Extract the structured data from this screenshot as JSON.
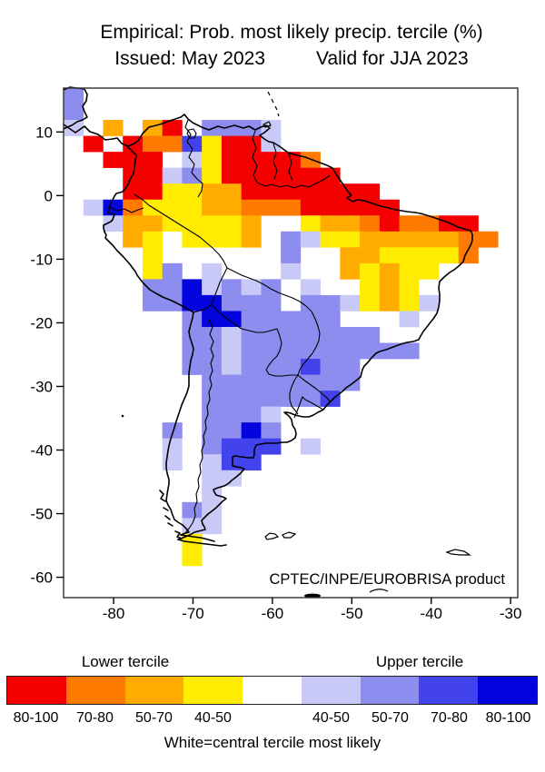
{
  "header": {
    "title_line1": "Empirical: Prob. most likely precip. tercile (%)",
    "issued": "Issued: May 2023",
    "valid": "Valid for JJA 2023"
  },
  "map": {
    "credit": "CPTEC/INPE/EUROBRISA product"
  },
  "legend": {
    "lower_title": "Lower tercile",
    "upper_title": "Upper tercile",
    "note": "White=central tercile most likely",
    "segments": [
      {
        "label": "80-100",
        "color": "#F50000",
        "tercile": "lower"
      },
      {
        "label": "70-80",
        "color": "#FF7A00",
        "tercile": "lower"
      },
      {
        "label": "50-70",
        "color": "#FFAB00",
        "tercile": "lower"
      },
      {
        "label": "40-50",
        "color": "#FFEC00",
        "tercile": "lower"
      },
      {
        "label": "",
        "color": "#FFFFFF",
        "tercile": "central"
      },
      {
        "label": "40-50",
        "color": "#C9C9F8",
        "tercile": "upper"
      },
      {
        "label": "50-70",
        "color": "#8D8DEF",
        "tercile": "upper"
      },
      {
        "label": "70-80",
        "color": "#4343EE",
        "tercile": "upper"
      },
      {
        "label": "80-100",
        "color": "#0404DF",
        "tercile": "upper"
      }
    ]
  },
  "chart_data": {
    "type": "heatmap",
    "title": "Empirical: Prob. most likely precip. tercile (%)",
    "subtitle": "Issued: May 2023  Valid for JJA 2023",
    "region": "South America",
    "x_ticks": [
      -80,
      -70,
      -60,
      -50,
      -40,
      -30
    ],
    "y_ticks": [
      10,
      0,
      -10,
      -20,
      -30,
      -40,
      -50,
      -60
    ],
    "lon_range": [
      -86.3,
      -29.1
    ],
    "lat_range": [
      -63.2,
      16.9
    ],
    "cell_deg": 2.5,
    "grid_on": false,
    "legend_position": "bottom",
    "palette": {
      "R": {
        "color": "#F50000",
        "meaning": "lower tercile 80-100%"
      },
      "O": {
        "color": "#FF7A00",
        "meaning": "lower tercile 70-80%"
      },
      "A": {
        "color": "#FFAB00",
        "meaning": "lower tercile 50-70%"
      },
      "Y": {
        "color": "#FFEC00",
        "meaning": "lower tercile 40-50%"
      },
      ".": {
        "color": "#FFFFFF",
        "meaning": "central tercile most likely"
      },
      "L": {
        "color": "#C9C9F8",
        "meaning": "upper tercile 40-50%"
      },
      "M": {
        "color": "#8D8DEF",
        "meaning": "upper tercile 50-70%"
      },
      "B": {
        "color": "#4343EE",
        "meaning": "upper tercile 70-80%"
      },
      "D": {
        "color": "#0404DF",
        "meaning": "upper tercile 80-100%"
      }
    },
    "grid_rows": [
      "M......................",
      "M......................",
      "L.A.AR.MMML............",
      ".R.ROOBYRRL............",
      "..RRR.LYRRRRO..........",
      "...RRLMYRRRRRR.........",
      "...RRYYAARRRRRRR.......",
      ".LDOYYYAAOOORRRRR......",
      "..LAAYYYYA..YAAOROORR..",
      "...AY.YYYA.MLYYAAAAAOO.",
      "....Y......M..AAYYYYO..",
      "....YM.L...L..AYAYY....",
      "....MMDLMLM.L..YAY.....",
      "....MMDDMMM.MMLYAYL....",
      "......MDDMMMMM...L.....",
      "......MMLMMMMMMM.......",
      "......MMLMMMMMMMMM.....",
      "......MMLMMMBMM........",
      ".......MMMMMMMM........",
      ".......MMMMMMB.........",
      ".......MMML............",
      ".....M.MMDM............",
      ".....L.MBBB.L..........",
      ".....L.LBB.............",
      ".......LL..............",
      ".......L...............",
      "......ML...............",
      "......LL...............",
      "......Y................",
      "......Y................",
      ".......................",
      "......................."
    ]
  }
}
